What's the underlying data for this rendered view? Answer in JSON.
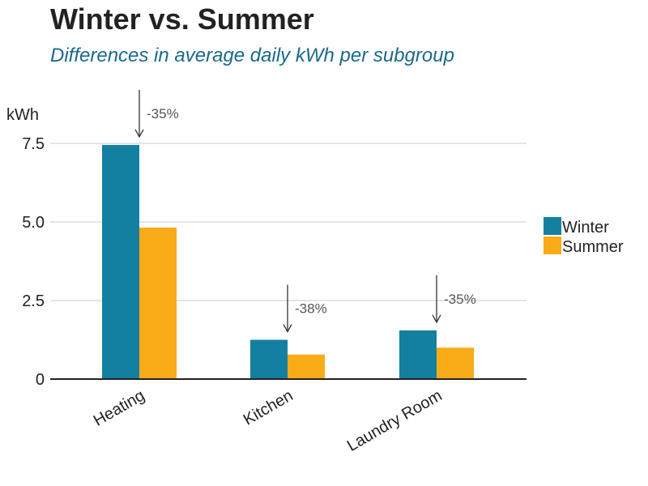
{
  "chart_data": {
    "type": "bar",
    "title": "Winter vs. Summer",
    "subtitle": "Differences in average daily kWh per subgroup",
    "ylabel": "kWh",
    "xlabel": "",
    "categories": [
      "Heating",
      "Kitchen",
      "Laundry Room"
    ],
    "series": [
      {
        "name": "Winter",
        "color": "#1380a1",
        "values": [
          7.45,
          1.25,
          1.55
        ]
      },
      {
        "name": "Summer",
        "color": "#faab18",
        "values": [
          4.82,
          0.78,
          1.0
        ]
      }
    ],
    "ylim": [
      0,
      7.5
    ],
    "yticks": [
      0,
      2.5,
      5.0,
      7.5
    ],
    "ytick_labels": [
      "0",
      "2.5",
      "5.0",
      "7.5"
    ],
    "grid": true,
    "legend": "right",
    "annotations": [
      "-35%",
      "-38%",
      "-35%"
    ]
  }
}
